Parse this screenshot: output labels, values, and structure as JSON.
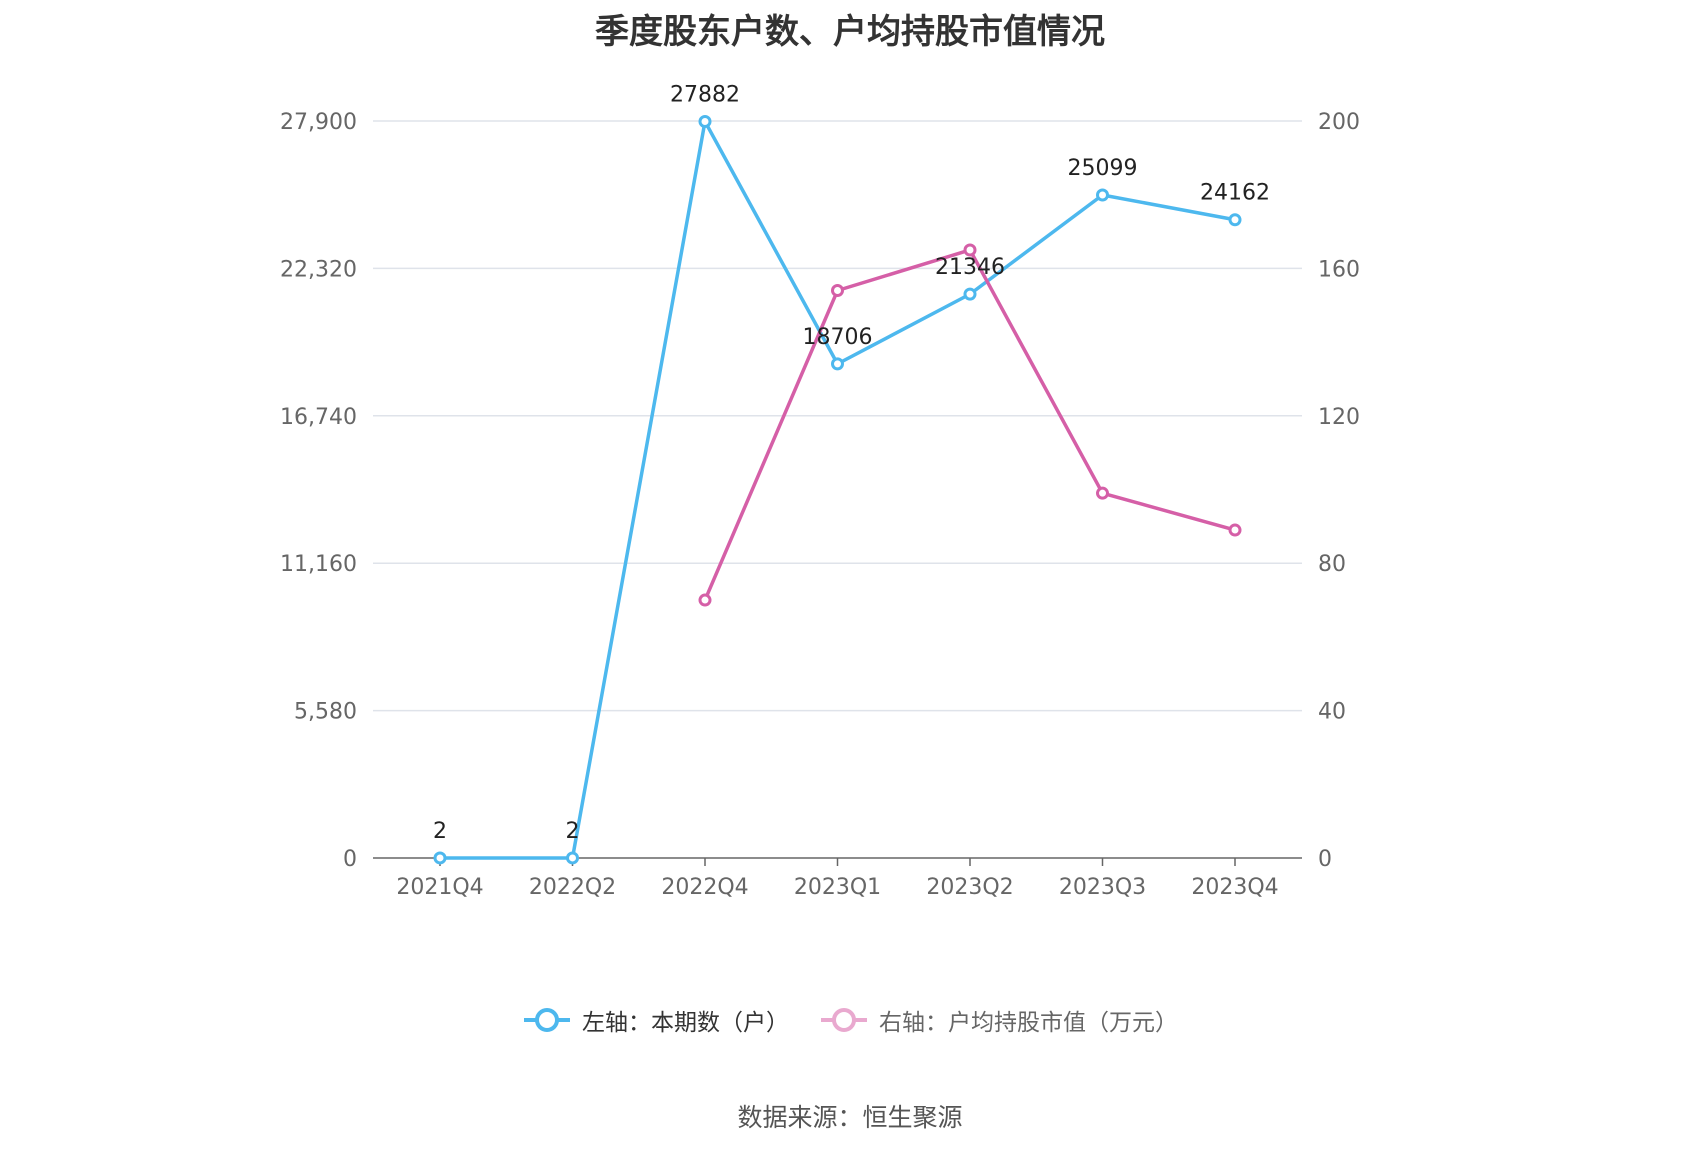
{
  "chart_data": {
    "type": "line",
    "title": "季度股东户数、户均持股市值情况",
    "categories": [
      "2021Q4",
      "2022Q2",
      "2022Q4",
      "2023Q1",
      "2023Q2",
      "2023Q3",
      "2023Q4"
    ],
    "left_axis": {
      "ticks": [
        "0",
        "5,580",
        "11,160",
        "16,740",
        "22,320",
        "27,900"
      ],
      "ylim": [
        0,
        27900
      ]
    },
    "right_axis": {
      "ticks": [
        "0",
        "40",
        "80",
        "120",
        "160",
        "200"
      ],
      "ylim": [
        0,
        200
      ]
    },
    "series": [
      {
        "name": "左轴：本期数（户）",
        "axis": "left",
        "color": "#4db8ee",
        "values": [
          2,
          2,
          27882,
          18706,
          21346,
          25099,
          24162
        ],
        "labels": [
          "2",
          "2",
          "27882",
          "18706",
          "21346",
          "25099",
          "24162"
        ]
      },
      {
        "name": "右轴：户均持股市值（万元）",
        "axis": "right",
        "color": "#d55fa7",
        "values": [
          null,
          null,
          70,
          154,
          165,
          99,
          89
        ]
      }
    ],
    "grid": true,
    "legend_position": "bottom"
  },
  "source": "数据来源：恒生聚源"
}
